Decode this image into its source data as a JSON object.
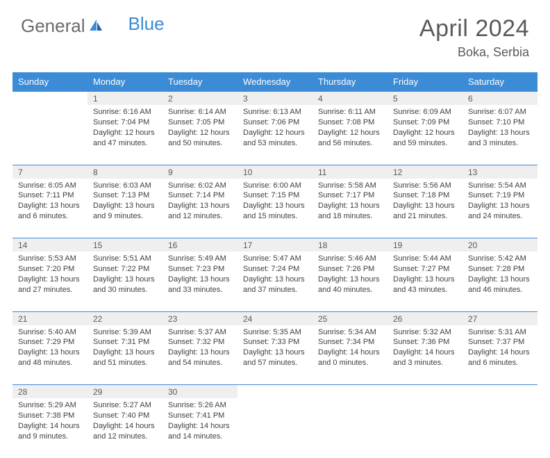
{
  "brand": {
    "part1": "General",
    "part2": "Blue"
  },
  "title": "April 2024",
  "location": "Boka, Serbia",
  "colors": {
    "header_bg": "#3b8bd6",
    "header_text": "#ffffff",
    "daynum_bg": "#efefef",
    "row_divider": "#3b8bd6",
    "body_text": "#404040",
    "title_text": "#5a5a5a"
  },
  "day_headers": [
    "Sunday",
    "Monday",
    "Tuesday",
    "Wednesday",
    "Thursday",
    "Friday",
    "Saturday"
  ],
  "weeks": [
    [
      null,
      {
        "n": "1",
        "sr": "Sunrise: 6:16 AM",
        "ss": "Sunset: 7:04 PM",
        "dl": "Daylight: 12 hours and 47 minutes."
      },
      {
        "n": "2",
        "sr": "Sunrise: 6:14 AM",
        "ss": "Sunset: 7:05 PM",
        "dl": "Daylight: 12 hours and 50 minutes."
      },
      {
        "n": "3",
        "sr": "Sunrise: 6:13 AM",
        "ss": "Sunset: 7:06 PM",
        "dl": "Daylight: 12 hours and 53 minutes."
      },
      {
        "n": "4",
        "sr": "Sunrise: 6:11 AM",
        "ss": "Sunset: 7:08 PM",
        "dl": "Daylight: 12 hours and 56 minutes."
      },
      {
        "n": "5",
        "sr": "Sunrise: 6:09 AM",
        "ss": "Sunset: 7:09 PM",
        "dl": "Daylight: 12 hours and 59 minutes."
      },
      {
        "n": "6",
        "sr": "Sunrise: 6:07 AM",
        "ss": "Sunset: 7:10 PM",
        "dl": "Daylight: 13 hours and 3 minutes."
      }
    ],
    [
      {
        "n": "7",
        "sr": "Sunrise: 6:05 AM",
        "ss": "Sunset: 7:11 PM",
        "dl": "Daylight: 13 hours and 6 minutes."
      },
      {
        "n": "8",
        "sr": "Sunrise: 6:03 AM",
        "ss": "Sunset: 7:13 PM",
        "dl": "Daylight: 13 hours and 9 minutes."
      },
      {
        "n": "9",
        "sr": "Sunrise: 6:02 AM",
        "ss": "Sunset: 7:14 PM",
        "dl": "Daylight: 13 hours and 12 minutes."
      },
      {
        "n": "10",
        "sr": "Sunrise: 6:00 AM",
        "ss": "Sunset: 7:15 PM",
        "dl": "Daylight: 13 hours and 15 minutes."
      },
      {
        "n": "11",
        "sr": "Sunrise: 5:58 AM",
        "ss": "Sunset: 7:17 PM",
        "dl": "Daylight: 13 hours and 18 minutes."
      },
      {
        "n": "12",
        "sr": "Sunrise: 5:56 AM",
        "ss": "Sunset: 7:18 PM",
        "dl": "Daylight: 13 hours and 21 minutes."
      },
      {
        "n": "13",
        "sr": "Sunrise: 5:54 AM",
        "ss": "Sunset: 7:19 PM",
        "dl": "Daylight: 13 hours and 24 minutes."
      }
    ],
    [
      {
        "n": "14",
        "sr": "Sunrise: 5:53 AM",
        "ss": "Sunset: 7:20 PM",
        "dl": "Daylight: 13 hours and 27 minutes."
      },
      {
        "n": "15",
        "sr": "Sunrise: 5:51 AM",
        "ss": "Sunset: 7:22 PM",
        "dl": "Daylight: 13 hours and 30 minutes."
      },
      {
        "n": "16",
        "sr": "Sunrise: 5:49 AM",
        "ss": "Sunset: 7:23 PM",
        "dl": "Daylight: 13 hours and 33 minutes."
      },
      {
        "n": "17",
        "sr": "Sunrise: 5:47 AM",
        "ss": "Sunset: 7:24 PM",
        "dl": "Daylight: 13 hours and 37 minutes."
      },
      {
        "n": "18",
        "sr": "Sunrise: 5:46 AM",
        "ss": "Sunset: 7:26 PM",
        "dl": "Daylight: 13 hours and 40 minutes."
      },
      {
        "n": "19",
        "sr": "Sunrise: 5:44 AM",
        "ss": "Sunset: 7:27 PM",
        "dl": "Daylight: 13 hours and 43 minutes."
      },
      {
        "n": "20",
        "sr": "Sunrise: 5:42 AM",
        "ss": "Sunset: 7:28 PM",
        "dl": "Daylight: 13 hours and 46 minutes."
      }
    ],
    [
      {
        "n": "21",
        "sr": "Sunrise: 5:40 AM",
        "ss": "Sunset: 7:29 PM",
        "dl": "Daylight: 13 hours and 48 minutes."
      },
      {
        "n": "22",
        "sr": "Sunrise: 5:39 AM",
        "ss": "Sunset: 7:31 PM",
        "dl": "Daylight: 13 hours and 51 minutes."
      },
      {
        "n": "23",
        "sr": "Sunrise: 5:37 AM",
        "ss": "Sunset: 7:32 PM",
        "dl": "Daylight: 13 hours and 54 minutes."
      },
      {
        "n": "24",
        "sr": "Sunrise: 5:35 AM",
        "ss": "Sunset: 7:33 PM",
        "dl": "Daylight: 13 hours and 57 minutes."
      },
      {
        "n": "25",
        "sr": "Sunrise: 5:34 AM",
        "ss": "Sunset: 7:34 PM",
        "dl": "Daylight: 14 hours and 0 minutes."
      },
      {
        "n": "26",
        "sr": "Sunrise: 5:32 AM",
        "ss": "Sunset: 7:36 PM",
        "dl": "Daylight: 14 hours and 3 minutes."
      },
      {
        "n": "27",
        "sr": "Sunrise: 5:31 AM",
        "ss": "Sunset: 7:37 PM",
        "dl": "Daylight: 14 hours and 6 minutes."
      }
    ],
    [
      {
        "n": "28",
        "sr": "Sunrise: 5:29 AM",
        "ss": "Sunset: 7:38 PM",
        "dl": "Daylight: 14 hours and 9 minutes."
      },
      {
        "n": "29",
        "sr": "Sunrise: 5:27 AM",
        "ss": "Sunset: 7:40 PM",
        "dl": "Daylight: 14 hours and 12 minutes."
      },
      {
        "n": "30",
        "sr": "Sunrise: 5:26 AM",
        "ss": "Sunset: 7:41 PM",
        "dl": "Daylight: 14 hours and 14 minutes."
      },
      null,
      null,
      null,
      null
    ]
  ]
}
